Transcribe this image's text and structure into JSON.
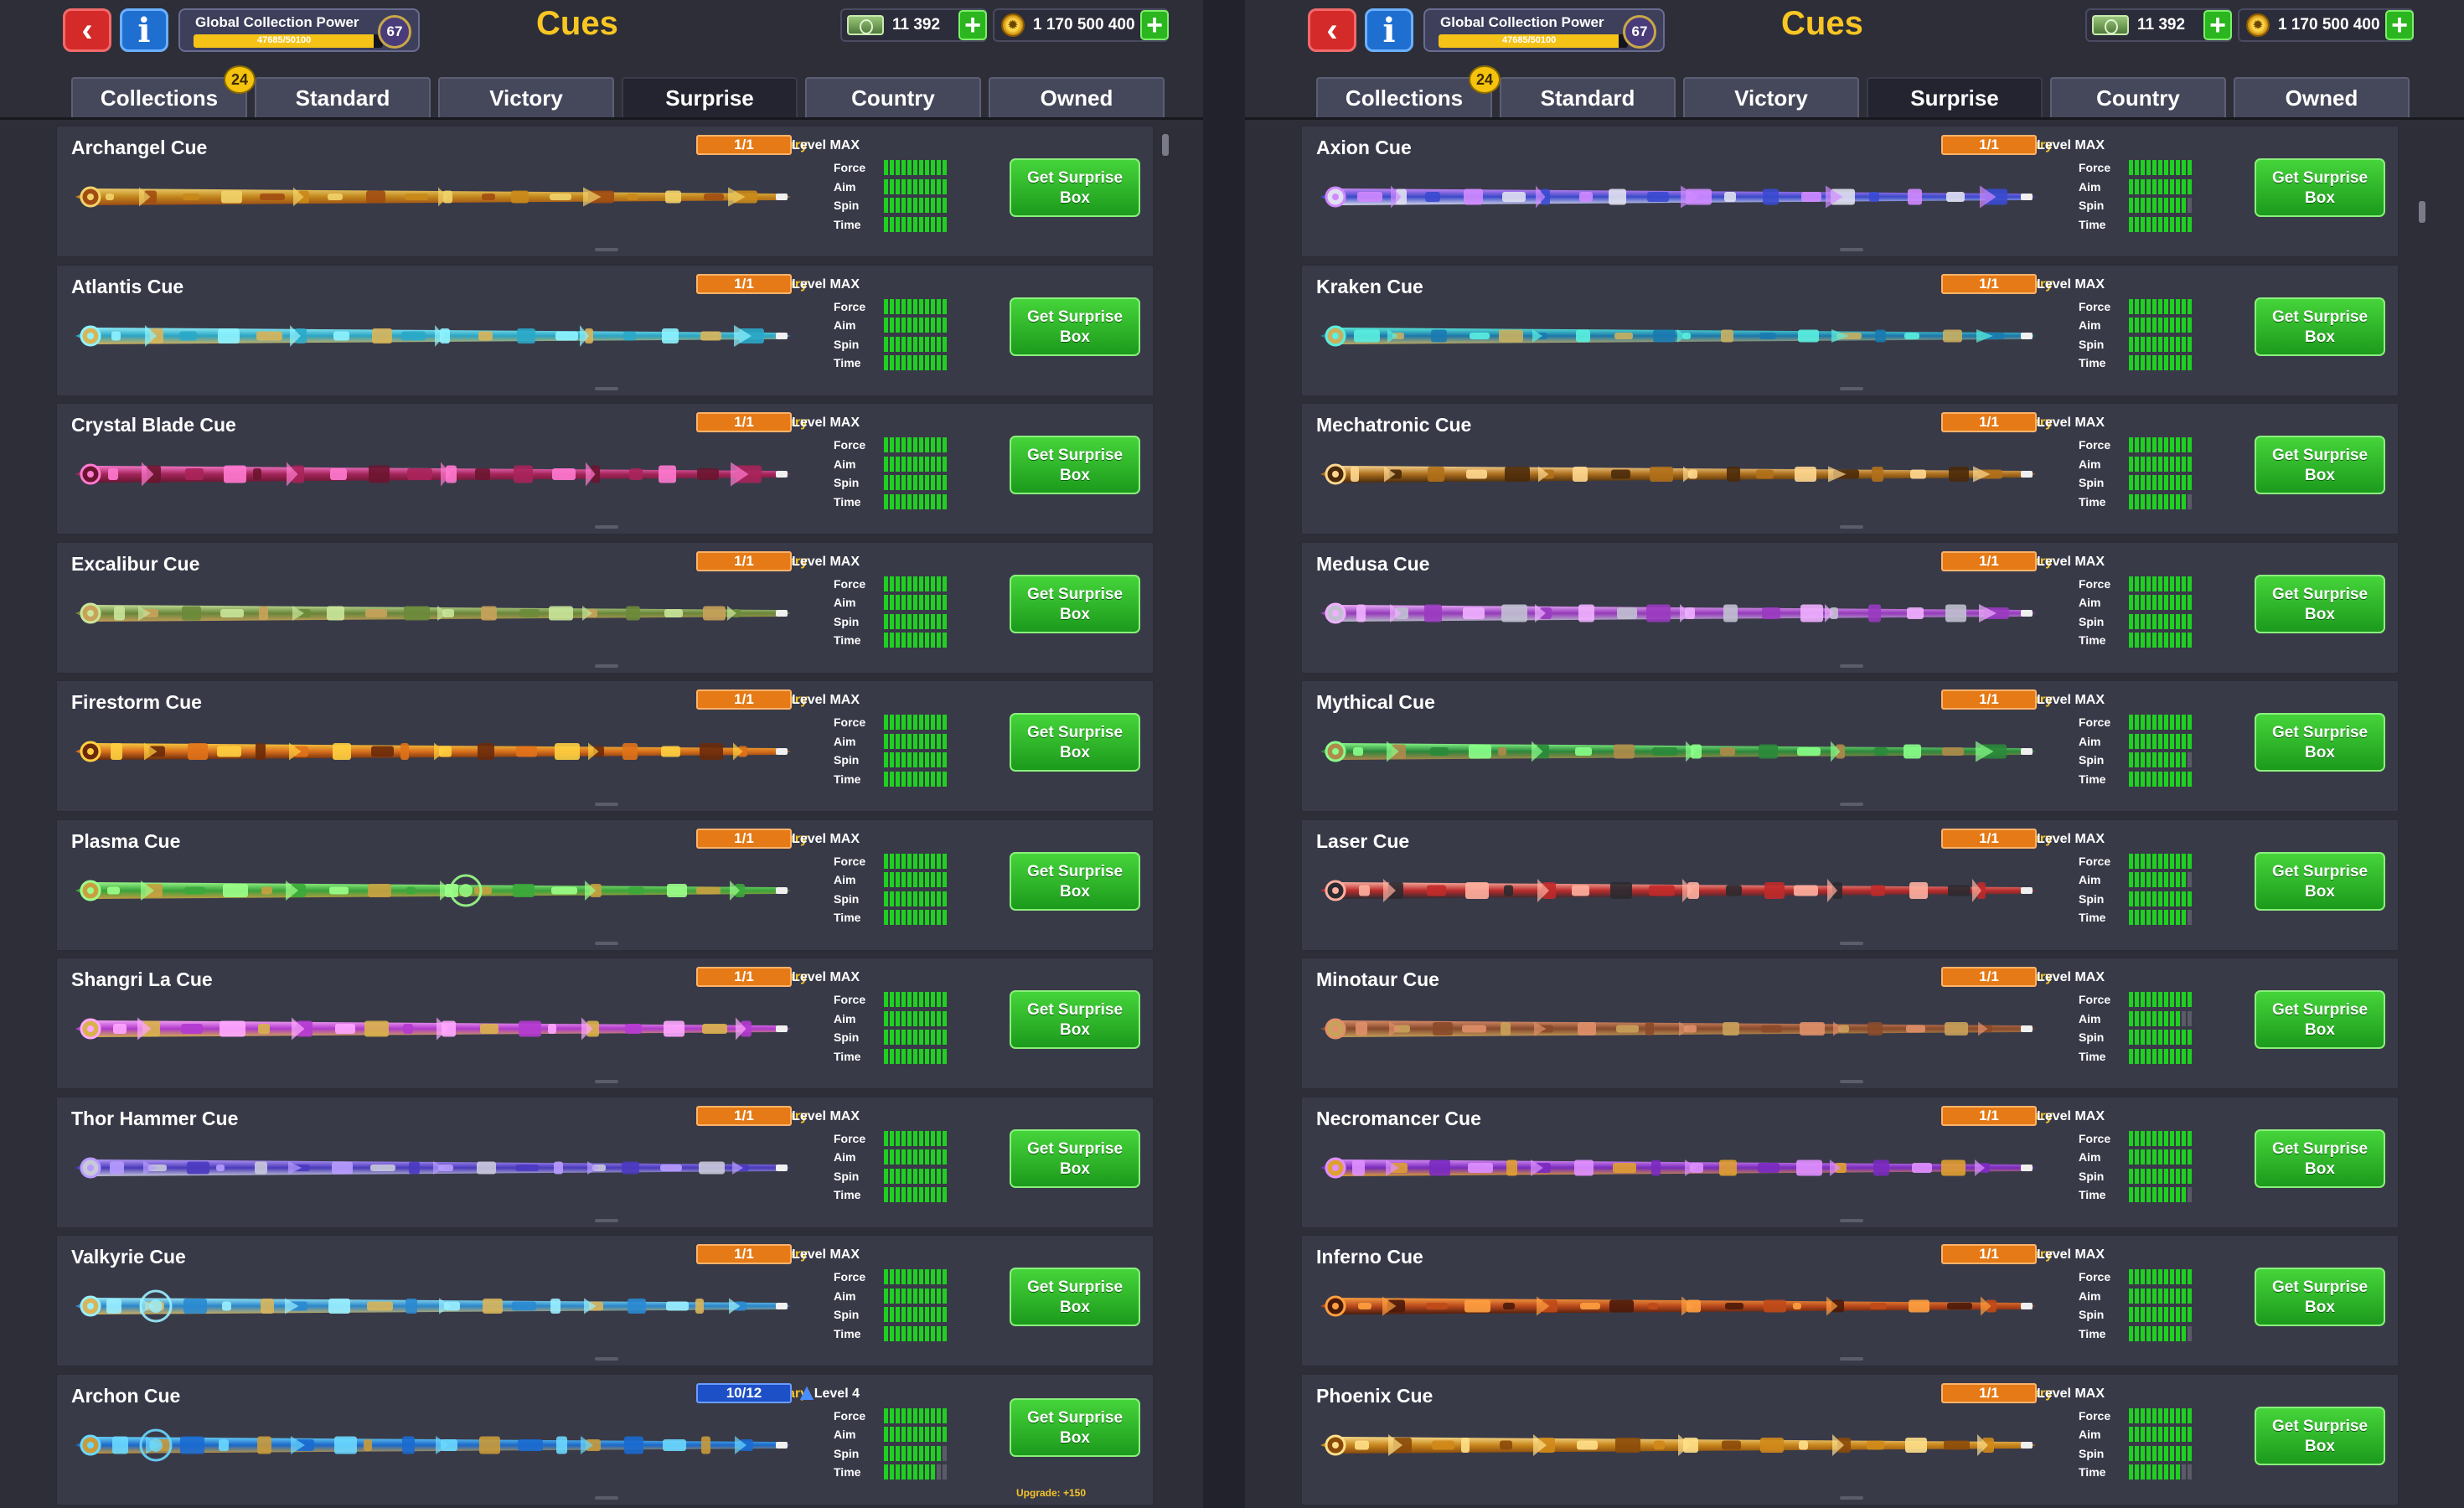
{
  "panels": [
    {
      "title": "Cues",
      "power": {
        "label": "Global Collection Power",
        "value": "47685/50100",
        "level": "67",
        "fill_fraction": 0.95
      },
      "cash": "11 392",
      "coins": "1 170 500 400",
      "tabs": [
        {
          "label": "Collections",
          "badge": "24"
        },
        {
          "label": "Standard"
        },
        {
          "label": "Victory"
        },
        {
          "label": "Surprise",
          "active": true
        },
        {
          "label": "Country"
        },
        {
          "label": "Owned"
        }
      ],
      "stat_labels": [
        "Force",
        "Aim",
        "Spin",
        "Time"
      ],
      "button_label_1": "Get Surprise",
      "button_label_2": "Box",
      "cues": [
        {
          "name": "Archangel Cue",
          "rarity": "Legendary",
          "level": "Level MAX",
          "count": "1/1",
          "style": "gold",
          "colors": [
            "#c98a1a",
            "#f2d36a",
            "#a14c12"
          ],
          "stats": [
            10,
            10,
            10,
            10
          ]
        },
        {
          "name": "Atlantis Cue",
          "rarity": "Legendary",
          "level": "Level MAX",
          "count": "1/1",
          "style": "aqua",
          "colors": [
            "#2aa9c9",
            "#8ef4ff",
            "#d9b55a"
          ],
          "stats": [
            10,
            10,
            10,
            10
          ]
        },
        {
          "name": "Crystal Blade Cue",
          "rarity": "Legendary",
          "level": "Level MAX",
          "count": "1/1",
          "style": "pink",
          "colors": [
            "#a8245a",
            "#ff7ad0",
            "#6a1530"
          ],
          "stats": [
            10,
            10,
            10,
            10
          ]
        },
        {
          "name": "Excalibur Cue",
          "rarity": "Legendary",
          "level": "Level MAX",
          "count": "1/1",
          "style": "green",
          "colors": [
            "#6b8a3a",
            "#c9e69a",
            "#c9a25a"
          ],
          "stats": [
            10,
            10,
            10,
            10
          ]
        },
        {
          "name": "Firestorm Cue",
          "rarity": "Legendary",
          "level": "Level MAX",
          "count": "1/1",
          "style": "fire",
          "colors": [
            "#e0721a",
            "#ffd040",
            "#6a2a0a"
          ],
          "stats": [
            10,
            10,
            10,
            10
          ]
        },
        {
          "name": "Plasma Cue",
          "rarity": "Legendary",
          "level": "Level MAX",
          "count": "1/1",
          "style": "plasma",
          "colors": [
            "#3aa83a",
            "#9cff8a",
            "#c9a040"
          ],
          "stats": [
            10,
            10,
            10,
            10
          ]
        },
        {
          "name": "Shangri La Cue",
          "rarity": "Legendary",
          "level": "Level MAX",
          "count": "1/1",
          "style": "violet",
          "colors": [
            "#b43ad0",
            "#ffa8ff",
            "#d9b24a"
          ],
          "stats": [
            10,
            10,
            10,
            10
          ]
        },
        {
          "name": "Thor Hammer Cue",
          "rarity": "Legendary",
          "level": "Level MAX",
          "count": "1/1",
          "style": "storm",
          "colors": [
            "#4a3ac0",
            "#b89cff",
            "#c9c9d9"
          ],
          "stats": [
            10,
            10,
            10,
            10
          ]
        },
        {
          "name": "Valkyrie Cue",
          "rarity": "Legendary",
          "level": "Level MAX",
          "count": "1/1",
          "style": "ice",
          "colors": [
            "#2a8ad0",
            "#9af0ff",
            "#d9b55a"
          ],
          "stats": [
            10,
            10,
            10,
            10
          ]
        },
        {
          "name": "Archon Cue",
          "rarity": "Legendary",
          "level": "Level 4",
          "count": "10/12",
          "count_style": "blue",
          "upgrade": "Upgrade: +150",
          "style": "archon",
          "colors": [
            "#1a6ad0",
            "#6ad8ff",
            "#c99a3a"
          ],
          "stats": [
            10,
            10,
            9,
            8
          ]
        }
      ]
    },
    {
      "title": "Cues",
      "power": {
        "label": "Global Collection Power",
        "value": "47685/50100",
        "level": "67",
        "fill_fraction": 0.95
      },
      "cash": "11 392",
      "coins": "1 170 500 400",
      "tabs": [
        {
          "label": "Collections",
          "badge": "24"
        },
        {
          "label": "Standard"
        },
        {
          "label": "Victory"
        },
        {
          "label": "Surprise",
          "active": true
        },
        {
          "label": "Country"
        },
        {
          "label": "Owned"
        }
      ],
      "stat_labels": [
        "Force",
        "Aim",
        "Spin",
        "Time"
      ],
      "button_label_1": "Get Surprise",
      "button_label_2": "Box",
      "cues": [
        {
          "name": "Axion Cue",
          "rarity": "Legendary",
          "level": "Level MAX",
          "count": "1/1",
          "style": "violet",
          "colors": [
            "#3a4ad0",
            "#d08aff",
            "#e0e0f0"
          ],
          "stats": [
            10,
            10,
            9,
            10
          ]
        },
        {
          "name": "Kraken Cue",
          "rarity": "Legendary",
          "level": "Level MAX",
          "count": "1/1",
          "style": "aqua",
          "colors": [
            "#1a7ab0",
            "#5af0e0",
            "#c9b060"
          ],
          "stats": [
            10,
            10,
            10,
            10
          ]
        },
        {
          "name": "Mechatronic Cue",
          "rarity": "Legendary",
          "level": "Level MAX",
          "count": "1/1",
          "style": "gold",
          "colors": [
            "#b0701a",
            "#ffd890",
            "#4a2a0a"
          ],
          "stats": [
            10,
            10,
            10,
            9
          ]
        },
        {
          "name": "Medusa Cue",
          "rarity": "Legendary",
          "level": "Level MAX",
          "count": "1/1",
          "style": "pink",
          "colors": [
            "#9a3ac0",
            "#f0b0ff",
            "#c0c0d0"
          ],
          "stats": [
            10,
            10,
            10,
            10
          ]
        },
        {
          "name": "Mythical Cue",
          "rarity": "Legendary",
          "level": "Level MAX",
          "count": "1/1",
          "style": "green",
          "colors": [
            "#2a8a3a",
            "#8aff8a",
            "#b08a4a"
          ],
          "stats": [
            10,
            10,
            9,
            10
          ]
        },
        {
          "name": "Laser Cue",
          "rarity": "Legendary",
          "level": "Level MAX",
          "count": "1/1",
          "style": "laser",
          "colors": [
            "#c02a2a",
            "#ffb0a0",
            "#2a2a30"
          ],
          "stats": [
            10,
            9,
            10,
            9
          ]
        },
        {
          "name": "Minotaur Cue",
          "rarity": "Legendary",
          "level": "Level MAX",
          "count": "1/1",
          "style": "bronze",
          "colors": [
            "#8a4a2a",
            "#e0906a",
            "#c9a25a"
          ],
          "stats": [
            10,
            8,
            10,
            10
          ]
        },
        {
          "name": "Necromancer Cue",
          "rarity": "Legendary",
          "level": "Level MAX",
          "count": "1/1",
          "style": "violet",
          "colors": [
            "#7a2ac0",
            "#e090ff",
            "#e0a030"
          ],
          "stats": [
            10,
            10,
            10,
            9
          ]
        },
        {
          "name": "Inferno Cue",
          "rarity": "Legendary",
          "level": "Level MAX",
          "count": "1/1",
          "style": "fire",
          "colors": [
            "#c04a1a",
            "#ffa040",
            "#4a1a0a"
          ],
          "stats": [
            10,
            10,
            10,
            9
          ]
        },
        {
          "name": "Phoenix Cue",
          "rarity": "Legendary",
          "level": "Level MAX",
          "count": "1/1",
          "style": "gold",
          "colors": [
            "#d08a1a",
            "#ffe08a",
            "#8a4a0a"
          ],
          "stats": [
            10,
            10,
            10,
            8
          ]
        }
      ]
    }
  ]
}
